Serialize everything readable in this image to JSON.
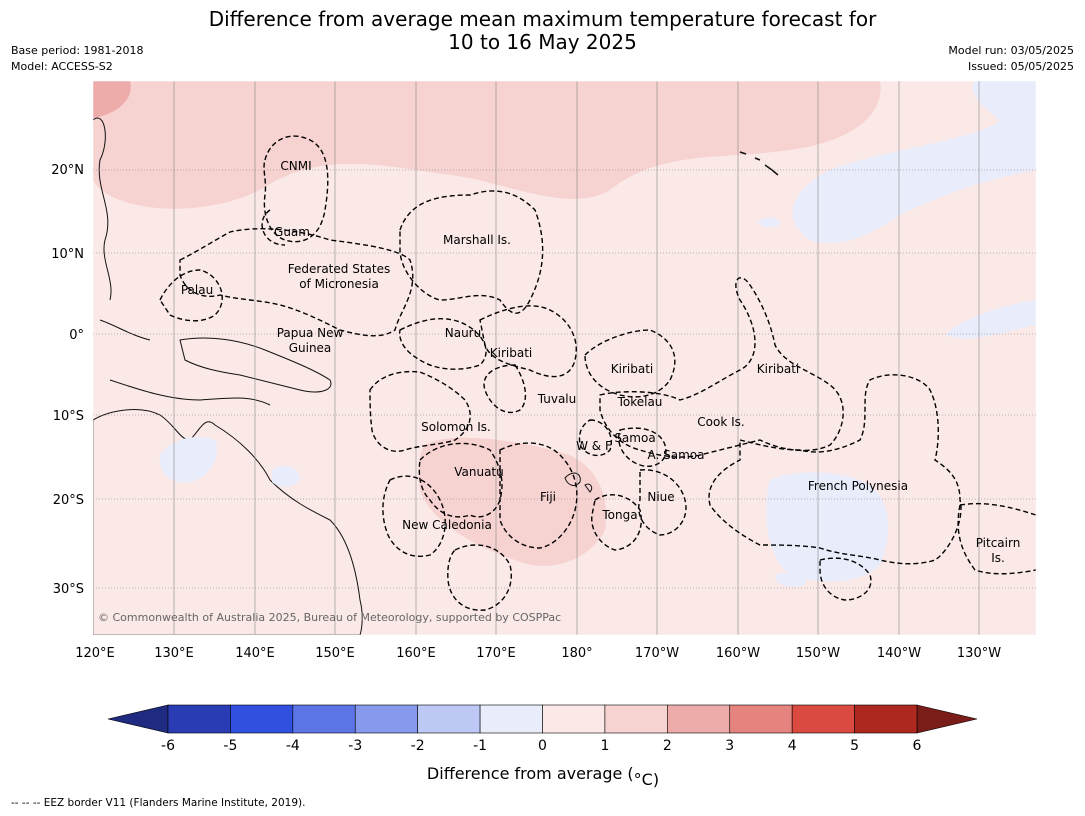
{
  "title": [
    "Difference from average mean maximum temperature forecast for",
    "10 to 16 May 2025"
  ],
  "meta_left": [
    "Base period: 1981-2018",
    "Model: ACCESS-S2"
  ],
  "meta_right": [
    "Model run: 03/05/2025",
    "Issued: 05/05/2025"
  ],
  "copyright": "© Commonwealth of Australia 2025, Bureau of Meteorology, supported by COSPPac",
  "lon_labels": [
    "120°E",
    "130°E",
    "140°E",
    "150°E",
    "160°E",
    "170°E",
    "180°",
    "170°W",
    "160°W",
    "150°W",
    "140°W",
    "130°W"
  ],
  "lat_labels": [
    "20°N",
    "10°N",
    "0°",
    "10°S",
    "20°S",
    "30°S"
  ],
  "region_labels": [
    {
      "text": "CNMI"
    },
    {
      "text": "Guam"
    },
    {
      "text": "Marshall Is."
    },
    {
      "text": "Federated States"
    },
    {
      "text": "of Micronesia"
    },
    {
      "text": "Palau"
    },
    {
      "text": "Papua New"
    },
    {
      "text": "Guinea"
    },
    {
      "text": "Nauru"
    },
    {
      "text": "Kiribati"
    },
    {
      "text": "Kiribati"
    },
    {
      "text": "Kiribati"
    },
    {
      "text": "Tuvalu"
    },
    {
      "text": "Tokelau"
    },
    {
      "text": "Solomon Is."
    },
    {
      "text": "W & F"
    },
    {
      "text": "Samoa"
    },
    {
      "text": "A. Samoa"
    },
    {
      "text": "Cook Is."
    },
    {
      "text": "Vanuatu"
    },
    {
      "text": "Fiji"
    },
    {
      "text": "Niue"
    },
    {
      "text": "Tonga"
    },
    {
      "text": "French Polynesia"
    },
    {
      "text": "New Caledonia"
    },
    {
      "text": "Pitcairn"
    },
    {
      "text": "Is."
    }
  ],
  "colorbar": {
    "ticks": [
      "-6",
      "-5",
      "-4",
      "-3",
      "-2",
      "-1",
      "0",
      "1",
      "2",
      "3",
      "4",
      "5",
      "6"
    ],
    "colors": [
      "#2a3cb4",
      "#3150e0",
      "#5b74e6",
      "#8799ec",
      "#bec8f4",
      "#e8ecfb",
      "#fbe9e8",
      "#f6d2d0",
      "#edabaa",
      "#e5837e",
      "#da4a40",
      "#ad2920"
    ],
    "under_color": "#1e2b80",
    "over_color": "#7a1c18",
    "label": "Difference from average (",
    "label_unit": "°C)"
  },
  "footer": "--  --  -- EEZ border V11 (Flanders Marine Institute, 2019)."
}
